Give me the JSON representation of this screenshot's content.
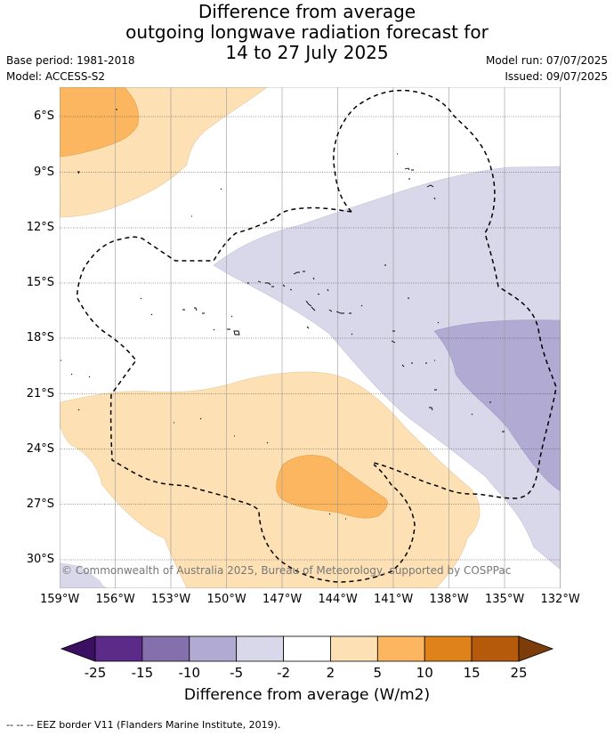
{
  "title_lines": [
    "Difference from average",
    "outgoing longwave radiation forecast for",
    "14 to 27 July 2025"
  ],
  "base_period": "Base period: 1981-2018",
  "model": "Model: ACCESS-S2",
  "model_run": "Model run: 07/07/2025",
  "issued": "Issued: 09/07/2025",
  "copyright": "© Commonwealth of Australia 2025, Bureau of Meteorology, supported by COSPPac",
  "lon_labels": [
    "159°W",
    "156°W",
    "153°W",
    "150°W",
    "147°W",
    "144°W",
    "141°W",
    "138°W",
    "135°W",
    "132°W"
  ],
  "lat_labels": [
    "6°S",
    "9°S",
    "12°S",
    "15°S",
    "18°S",
    "21°S",
    "24°S",
    "27°S",
    "30°S"
  ],
  "colorbar": {
    "ticks": [
      "-25",
      "-15",
      "-10",
      "-5",
      "-2",
      "2",
      "5",
      "10",
      "15",
      "25"
    ],
    "colors": [
      "#3b0f62",
      "#5c2b8a",
      "#8370ad",
      "#b1aad2",
      "#d8d8ea",
      "#ffffff",
      "#fde0b4",
      "#fcb660",
      "#e0821a",
      "#b55a0a",
      "#7c3d0a"
    ],
    "label": "Difference from average (W/m2)"
  },
  "footer": "--  --  -- EEZ border V11 (Flanders Marine Institute, 2019)."
}
